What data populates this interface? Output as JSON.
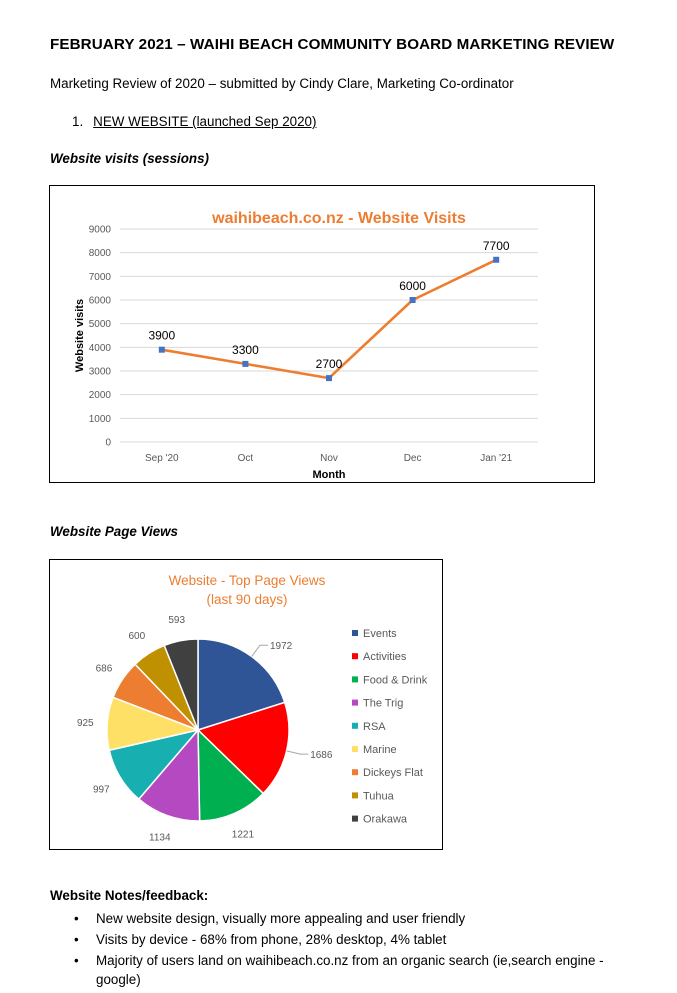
{
  "doc_title": "FEBRUARY 2021 – WAIHI BEACH COMMUNITY BOARD MARKETING REVIEW",
  "subtitle": "Marketing Review of 2020 – submitted by Cindy Clare, Marketing Co-ordinator",
  "section1": {
    "number": "1.",
    "label": "NEW WEBSITE (launched Sep 2020)"
  },
  "visits_heading": "Website visits (sessions)",
  "pageviews_heading": "Website Page Views",
  "notes": {
    "heading": "Website Notes/feedback:",
    "bullet": "•",
    "items": [
      "New website design, visually more appealing and user friendly",
      "Visits by device - 68% from phone, 28% desktop, 4% tablet",
      "Majority of users land on waihibeach.co.nz from an organic search (ie,search engine - google)"
    ]
  },
  "chart_data": [
    {
      "type": "line",
      "title": "waihibeach.co.nz  - Website Visits",
      "xlabel": "Month",
      "ylabel": "Website visits",
      "categories": [
        "Sep '20",
        "Oct",
        "Nov",
        "Dec",
        "Jan '21"
      ],
      "values": [
        3900,
        3300,
        2700,
        6000,
        7700
      ],
      "data_labels": [
        "3900",
        "3300",
        "2700",
        "6000",
        "7700"
      ],
      "ylim": [
        0,
        9000
      ],
      "yticks": [
        "0",
        "1000",
        "2000",
        "3000",
        "4000",
        "5000",
        "6000",
        "7000",
        "8000",
        "9000"
      ],
      "grid": true,
      "line_color": "#ED7D31",
      "marker_color": "#4472C4",
      "title_color": "#ED7D31"
    },
    {
      "type": "pie",
      "title": [
        "Website - Top Page Views",
        "(last 90 days)"
      ],
      "title_color": "#ED7D31",
      "legend_position": "right",
      "slices": [
        {
          "label": "Events",
          "value": 1972,
          "value_label": "1972",
          "color": "#2F5597"
        },
        {
          "label": "Activities",
          "value": 1686,
          "value_label": "1686",
          "color": "#FF0000"
        },
        {
          "label": "Food & Drink",
          "value": 1221,
          "value_label": "1221",
          "color": "#00B050"
        },
        {
          "label": "The Trig",
          "value": 1134,
          "value_label": "1134",
          "color": "#B449C1"
        },
        {
          "label": "RSA",
          "value": 997,
          "value_label": "997",
          "color": "#17AFB0"
        },
        {
          "label": "Marine",
          "value": 925,
          "value_label": "925",
          "color": "#FFE066"
        },
        {
          "label": "Dickeys Flat",
          "value": 686,
          "value_label": "686",
          "color": "#ED7D31"
        },
        {
          "label": "Tuhua",
          "value": 600,
          "value_label": "600",
          "color": "#BF9000"
        },
        {
          "label": "Orakawa",
          "value": 593,
          "value_label": "593",
          "color": "#404040"
        }
      ]
    }
  ]
}
